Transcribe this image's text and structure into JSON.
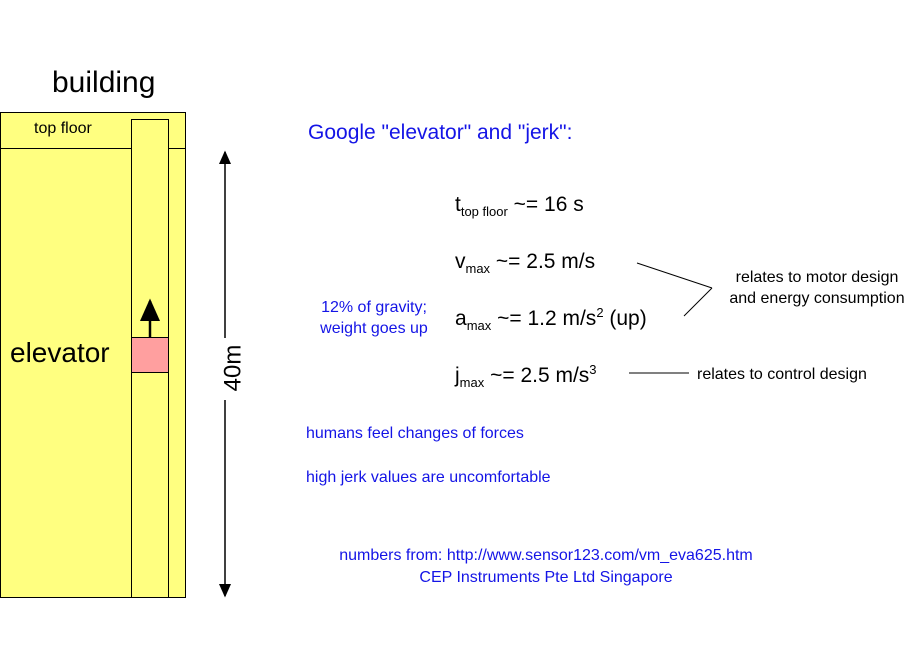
{
  "building": {
    "title": "building",
    "top_floor_label": "top floor",
    "elevator_label": "elevator",
    "height_label": "40m"
  },
  "header": {
    "google_text": "Google \"elevator\" and \"jerk\":"
  },
  "formulas": {
    "t": {
      "symbol": "t",
      "sub": "top floor",
      "value": "~= 16 s"
    },
    "v": {
      "symbol": "v",
      "sub": "max",
      "value": "~=  2.5 m/s"
    },
    "a": {
      "symbol": "a",
      "sub": "max",
      "value": "~= 1.2 m/s",
      "sup": "2",
      "suffix": " (up)"
    },
    "j": {
      "symbol": "j",
      "sub": "max",
      "value": "~= 2.5 m/s",
      "sup": "3"
    }
  },
  "notes": {
    "gravity_line1": "12% of gravity;",
    "gravity_line2": "weight goes up",
    "motor_line1": "relates to motor design",
    "motor_line2": "and energy consumption",
    "control": "relates to control design",
    "humans_line1": "humans feel changes of forces",
    "humans_line2": "high jerk values are uncomfortable",
    "source_line1": "numbers from: http://www.sensor123.com/vm_eva625.htm",
    "source_line2": "CEP Instruments Pte Ltd Singapore"
  },
  "colors": {
    "building_fill": "#ffff80",
    "car_fill": "#ff9f9f",
    "annotation_blue": "#1414e6"
  }
}
